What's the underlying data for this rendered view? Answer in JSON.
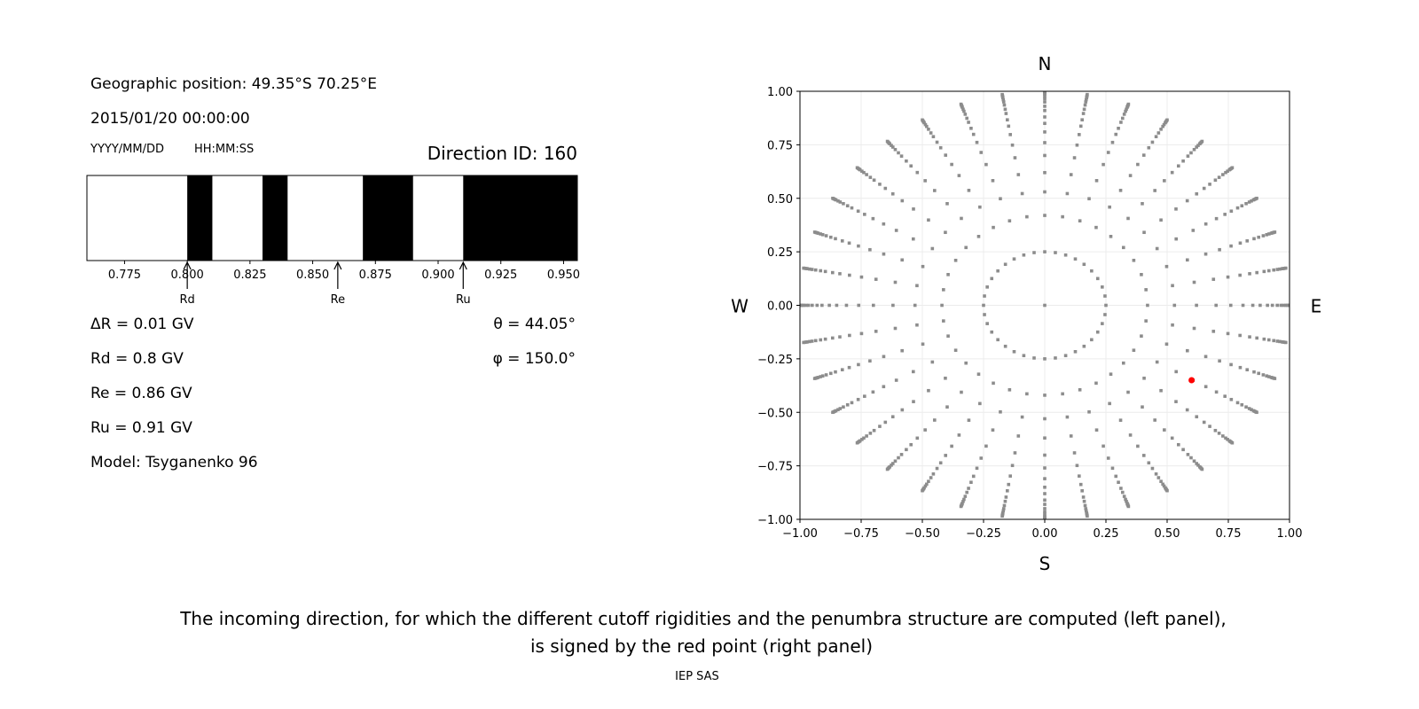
{
  "info": {
    "position": "Geographic position: 49.35°S 70.25°E",
    "datetime": "2015/01/20 00:00:00",
    "date_format": "YYYY/MM/DD",
    "time_format": "HH:MM:SS",
    "direction_id": "Direction ID: 160",
    "delta_r": "ΔR = 0.01 GV",
    "rd": "Rd = 0.8 GV",
    "re": "Re = 0.86 GV",
    "ru": "Ru = 0.91 GV",
    "model": "Model: Tsyganenko 96",
    "theta": "θ = 44.05°",
    "phi": "φ = 150.0°"
  },
  "caption": {
    "line1": "The incoming direction, for which the different cutoff rigidities and the penumbra structure are computed (left panel),",
    "line2": "is signed by the red point (right panel)",
    "credit": "IEP SAS"
  },
  "chart_data": [
    {
      "type": "bar",
      "title": "",
      "xlim": [
        0.76,
        0.9555
      ],
      "xticks": [
        "0.775",
        "0.800",
        "0.825",
        "0.850",
        "0.875",
        "0.900",
        "0.925",
        "0.950"
      ],
      "forbidden_bands": [
        [
          0.8,
          0.81
        ],
        [
          0.83,
          0.84
        ],
        [
          0.87,
          0.89
        ],
        [
          0.91,
          0.9555
        ]
      ],
      "allowed_color": "#ffffff",
      "forbidden_color": "#000000",
      "annotations": [
        {
          "label": "Rd",
          "x": 0.8
        },
        {
          "label": "Re",
          "x": 0.86
        },
        {
          "label": "Ru",
          "x": 0.91
        }
      ]
    },
    {
      "type": "scatter",
      "xlim": [
        -1,
        1
      ],
      "ylim": [
        -1,
        1
      ],
      "xticks": [
        "−1.00",
        "−0.75",
        "−0.50",
        "−0.25",
        "0.00",
        "0.25",
        "0.50",
        "0.75",
        "1.00"
      ],
      "yticks": [
        "1.00",
        "0.75",
        "0.50",
        "0.25",
        "0.00",
        "−0.25",
        "−0.50",
        "−0.75",
        "−1.00"
      ],
      "grid": true,
      "compass": {
        "n": "N",
        "s": "S",
        "e": "E",
        "w": "W"
      },
      "grid_points": {
        "center": [
          0,
          0
        ],
        "inner_ring_radius": 0.25,
        "spoke_count": 36,
        "spoke_radii": [
          0.42,
          0.53,
          0.62,
          0.7,
          0.76,
          0.81,
          0.85,
          0.88,
          0.91,
          0.93,
          0.95,
          0.965,
          0.975,
          0.985,
          0.99,
          0.995,
          1.0
        ],
        "color": "#8c8c8c"
      },
      "selected_point": {
        "x": 0.6,
        "y": -0.35,
        "color": "#ff0000"
      }
    }
  ]
}
